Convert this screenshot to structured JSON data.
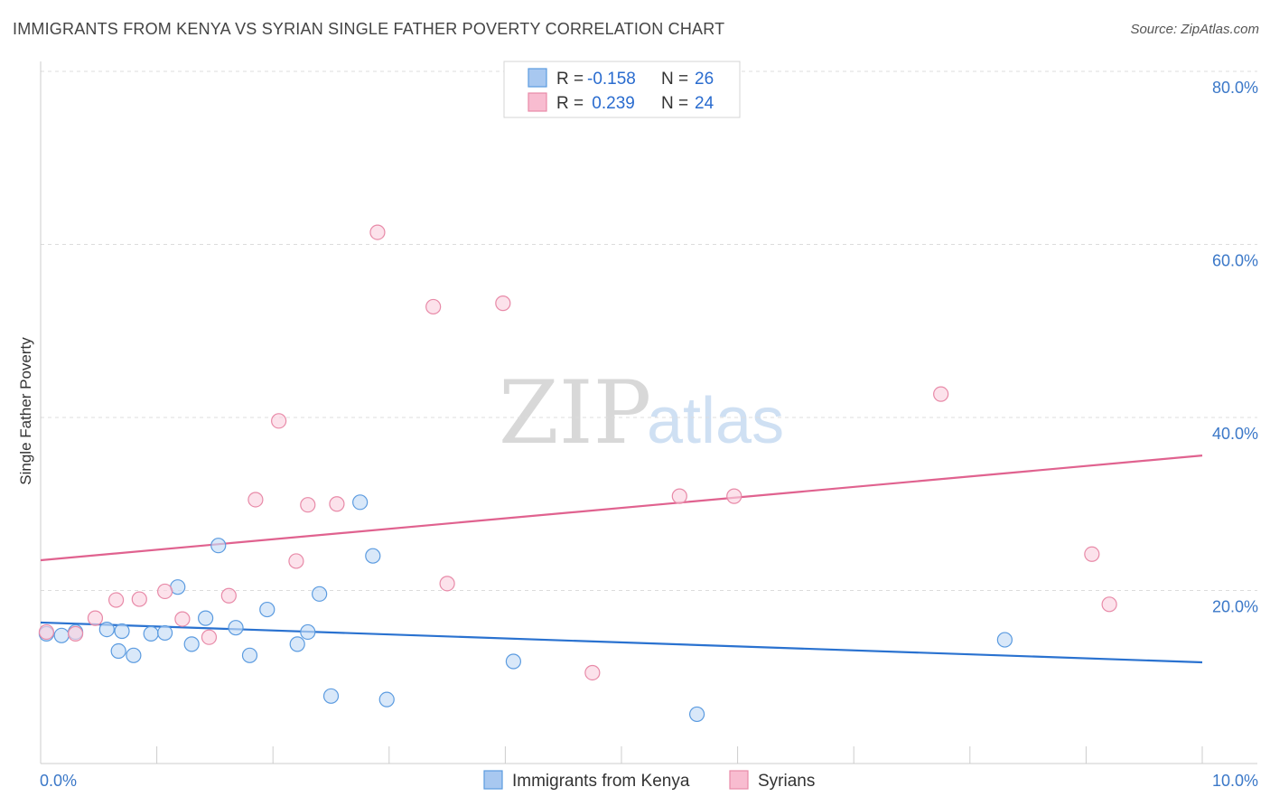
{
  "title": "IMMIGRANTS FROM KENYA VS SYRIAN SINGLE FATHER POVERTY CORRELATION CHART",
  "source": "Source: ZipAtlas.com",
  "watermark": {
    "zip": "ZIP",
    "atlas": "atlas"
  },
  "legend_stats": [
    {
      "r_label": "R = ",
      "r_value": "-0.158",
      "n_label": "N = ",
      "n_value": "26",
      "color": "#a8c8f0"
    },
    {
      "r_label": "R = ",
      "r_value": " 0.239",
      "n_label": "N = ",
      "n_value": "24",
      "color": "#f8bcd0"
    }
  ],
  "chart_data": {
    "type": "scatter",
    "title": "IMMIGRANTS FROM KENYA VS SYRIAN SINGLE FATHER POVERTY CORRELATION CHART",
    "xlabel": "",
    "ylabel": "Single Father Poverty",
    "xlim": [
      0,
      10
    ],
    "ylim": [
      0,
      80
    ],
    "x_tick_labels": [
      "0.0%",
      "10.0%"
    ],
    "y_tick_labels": [
      "20.0%",
      "40.0%",
      "60.0%",
      "80.0%"
    ],
    "y_ticks": [
      20,
      40,
      60,
      80
    ],
    "grid": true,
    "legend_position": "bottom",
    "series": [
      {
        "name": "Immigrants from Kenya",
        "color": "#5b9be0",
        "fill": "#c5dcf6",
        "points": [
          [
            0.05,
            15.0
          ],
          [
            0.18,
            14.8
          ],
          [
            0.3,
            15.2
          ],
          [
            0.57,
            15.5
          ],
          [
            0.7,
            15.3
          ],
          [
            0.67,
            13.0
          ],
          [
            0.8,
            12.5
          ],
          [
            0.95,
            15.0
          ],
          [
            1.07,
            15.1
          ],
          [
            1.18,
            20.4
          ],
          [
            1.3,
            13.8
          ],
          [
            1.42,
            16.8
          ],
          [
            1.53,
            25.2
          ],
          [
            1.68,
            15.7
          ],
          [
            1.8,
            12.5
          ],
          [
            1.95,
            17.8
          ],
          [
            2.21,
            13.8
          ],
          [
            2.3,
            15.2
          ],
          [
            2.4,
            19.6
          ],
          [
            2.5,
            7.8
          ],
          [
            2.75,
            30.2
          ],
          [
            2.86,
            24.0
          ],
          [
            2.98,
            7.4
          ],
          [
            4.07,
            11.8
          ],
          [
            5.65,
            5.7
          ],
          [
            8.3,
            14.3
          ]
        ],
        "trend": {
          "x": [
            0,
            10
          ],
          "y": [
            16.3,
            11.7
          ]
        }
      },
      {
        "name": "Syrians",
        "color": "#e88aa8",
        "fill": "#fbd3e0",
        "points": [
          [
            0.05,
            15.2
          ],
          [
            0.3,
            15.0
          ],
          [
            0.47,
            16.8
          ],
          [
            0.65,
            18.9
          ],
          [
            0.85,
            19.0
          ],
          [
            1.07,
            19.9
          ],
          [
            1.22,
            16.7
          ],
          [
            1.45,
            14.6
          ],
          [
            1.62,
            19.4
          ],
          [
            1.85,
            30.5
          ],
          [
            2.05,
            39.6
          ],
          [
            2.2,
            23.4
          ],
          [
            2.3,
            29.9
          ],
          [
            2.55,
            30.0
          ],
          [
            2.9,
            61.4
          ],
          [
            3.38,
            52.8
          ],
          [
            3.5,
            20.8
          ],
          [
            3.98,
            53.2
          ],
          [
            4.75,
            10.5
          ],
          [
            5.5,
            30.9
          ],
          [
            5.97,
            30.9
          ],
          [
            7.75,
            42.7
          ],
          [
            9.05,
            24.2
          ],
          [
            9.2,
            18.4
          ]
        ],
        "trend": {
          "x": [
            0,
            10
          ],
          "y": [
            23.5,
            35.6
          ]
        }
      }
    ]
  }
}
